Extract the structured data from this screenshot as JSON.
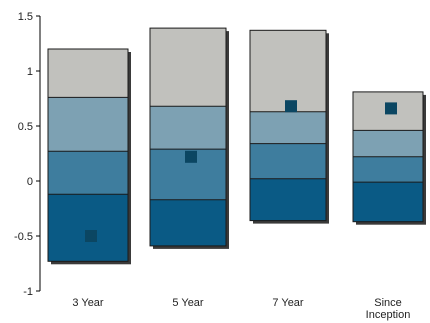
{
  "chart_data": {
    "type": "bar",
    "subtype": "floating-quartile-bands-with-marker",
    "categories": [
      "3 Year",
      "5 Year",
      "7 Year",
      "Since Inception"
    ],
    "category_labels": [
      [
        "3 Year"
      ],
      [
        "5 Year"
      ],
      [
        "7 Year"
      ],
      [
        "Since",
        "Inception"
      ]
    ],
    "y_ticks": [
      -1,
      -0.5,
      0,
      0.5,
      1,
      1.5
    ],
    "y_tick_labels": [
      "-1",
      "-0.5",
      "0",
      "0.5",
      "1",
      "1.5"
    ],
    "ylim": [
      -1,
      1.5
    ],
    "grid": false,
    "title": "",
    "xlabel": "",
    "ylabel": "",
    "bands": [
      {
        "category": "3 Year",
        "bounds": [
          -0.73,
          -0.12,
          0.27,
          0.76,
          1.2
        ]
      },
      {
        "category": "5 Year",
        "bounds": [
          -0.59,
          -0.17,
          0.29,
          0.68,
          1.39
        ]
      },
      {
        "category": "7 Year",
        "bounds": [
          -0.36,
          0.02,
          0.34,
          0.63,
          1.37
        ]
      },
      {
        "category": "Since Inception",
        "bounds": [
          -0.37,
          -0.01,
          0.22,
          0.46,
          0.81
        ]
      }
    ],
    "marker_values": [
      -0.5,
      0.22,
      0.68,
      0.66
    ],
    "band_colors": [
      "#0a5a85",
      "#3e7d9e",
      "#7da1b3",
      "#c1c1bd"
    ],
    "marker_color": "#0b4662",
    "outline_color": "#1a1a1a",
    "shadow_color": "#3a3a3a"
  }
}
